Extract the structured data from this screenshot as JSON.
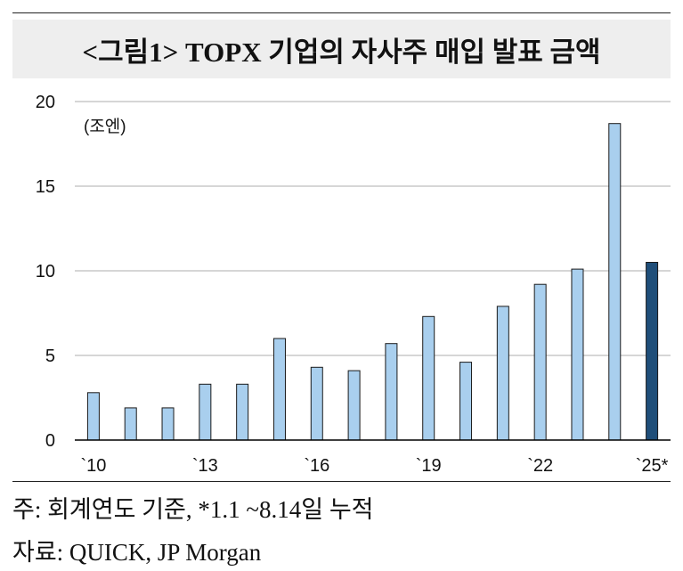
{
  "title": "<그림1> TOPX 기업의 자사주 매입 발표 금액",
  "notes": {
    "basis": "주: 회계연도 기준, *1.1 ~8.14일 누적",
    "source": "자료: QUICK, JP Morgan"
  },
  "colors": {
    "bar": "#a9cfee",
    "bar_highlight": "#1f4e79",
    "bar_stroke": "#1a1a1a",
    "grid": "#c8c8c8",
    "axis": "#000000"
  },
  "chart_data": {
    "type": "bar",
    "unit_label": "(조엔)",
    "categories": [
      "2010",
      "2011",
      "2012",
      "2013",
      "2014",
      "2015",
      "2016",
      "2017",
      "2018",
      "2019",
      "2020",
      "2021",
      "2022",
      "2023",
      "2024",
      "2025"
    ],
    "values": [
      2.8,
      1.9,
      1.9,
      3.3,
      3.3,
      6.0,
      4.3,
      4.1,
      5.7,
      7.3,
      4.6,
      7.9,
      9.2,
      10.1,
      18.7,
      10.5
    ],
    "highlight_index": 15,
    "x_tick_labels": [
      "`10",
      "`13",
      "`16",
      "`19",
      "`22",
      "`25*"
    ],
    "x_tick_indices": [
      0,
      3,
      6,
      9,
      12,
      15
    ],
    "y_ticks": [
      0,
      5,
      10,
      15,
      20
    ],
    "ylim": [
      0,
      20
    ],
    "grid": true
  }
}
